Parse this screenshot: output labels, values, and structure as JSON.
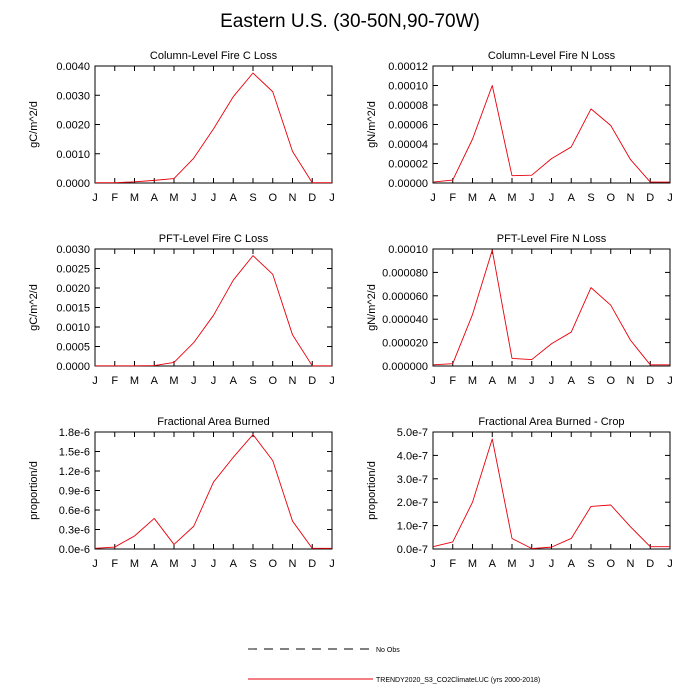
{
  "title": "Eastern U.S. (30-50N,90-70W)",
  "colors": {
    "series": "#e8000b",
    "axis": "#000000",
    "obs": "#000000"
  },
  "legend": {
    "obs_label": "No Obs",
    "model_label": "TRENDY2020_S3_CO2ClimateLUC (yrs 2000-2018)"
  },
  "chart_data": [
    {
      "type": "line",
      "title": "Column-Level Fire C Loss",
      "ylabel": "gC/m^2/d",
      "categories": [
        "J",
        "F",
        "M",
        "A",
        "M",
        "J",
        "J",
        "A",
        "S",
        "O",
        "N",
        "D",
        "J"
      ],
      "ylim": [
        0,
        0.004
      ],
      "yticks": [
        0,
        0.001,
        0.002,
        0.003,
        0.004
      ],
      "ytick_labels": [
        "0.0000",
        "0.0010",
        "0.0020",
        "0.0030",
        "0.0040"
      ],
      "series": [
        {
          "name": "TRENDY2020_S3_CO2ClimateLUC (yrs 2000-2018)",
          "values": [
            1e-05,
            1e-05,
            4e-05,
            9e-05,
            0.00015,
            0.00085,
            0.00185,
            0.00295,
            0.00376,
            0.00312,
            0.00108,
            1e-05,
            1e-05
          ]
        }
      ]
    },
    {
      "type": "line",
      "title": "Column-Level Fire N Loss",
      "ylabel": "gN/m^2/d",
      "categories": [
        "J",
        "F",
        "M",
        "A",
        "M",
        "J",
        "J",
        "A",
        "S",
        "O",
        "N",
        "D",
        "J"
      ],
      "ylim": [
        0,
        0.00012
      ],
      "yticks": [
        0,
        2e-05,
        4e-05,
        6e-05,
        8e-05,
        0.0001,
        0.00012
      ],
      "ytick_labels": [
        "0.00000",
        "0.00002",
        "0.00004",
        "0.00006",
        "0.00008",
        "0.00010",
        "0.00012"
      ],
      "series": [
        {
          "name": "TRENDY2020_S3_CO2ClimateLUC (yrs 2000-2018)",
          "values": [
            1e-06,
            3e-06,
            4.5e-05,
            0.0001,
            7.5e-06,
            8e-06,
            2.5e-05,
            3.7e-05,
            7.6e-05,
            5.9e-05,
            2.4e-05,
            1e-06,
            1e-06
          ]
        }
      ]
    },
    {
      "type": "line",
      "title": "PFT-Level Fire C Loss",
      "ylabel": "gC/m^2/d",
      "categories": [
        "J",
        "F",
        "M",
        "A",
        "M",
        "J",
        "J",
        "A",
        "S",
        "O",
        "N",
        "D",
        "J"
      ],
      "ylim": [
        0,
        0.003
      ],
      "yticks": [
        0,
        0.0005,
        0.001,
        0.0015,
        0.002,
        0.0025,
        0.003
      ],
      "ytick_labels": [
        "0.0000",
        "0.0005",
        "0.0010",
        "0.0015",
        "0.0020",
        "0.0025",
        "0.0030"
      ],
      "series": [
        {
          "name": "TRENDY2020_S3_CO2ClimateLUC (yrs 2000-2018)",
          "values": [
            5e-06,
            5e-06,
            5e-06,
            1e-05,
            9e-05,
            0.0006,
            0.0013,
            0.0022,
            0.00283,
            0.00235,
            0.0008,
            5e-06,
            5e-06
          ]
        }
      ]
    },
    {
      "type": "line",
      "title": "PFT-Level Fire N Loss",
      "ylabel": "gN/m^2/d",
      "categories": [
        "J",
        "F",
        "M",
        "A",
        "M",
        "J",
        "J",
        "A",
        "S",
        "O",
        "N",
        "D",
        "J"
      ],
      "ylim": [
        0,
        0.0001
      ],
      "yticks": [
        0,
        2e-05,
        4e-05,
        6e-05,
        8e-05,
        0.0001
      ],
      "ytick_labels": [
        "0.000000",
        "0.000020",
        "0.000040",
        "0.000060",
        "0.000080",
        "0.00010"
      ],
      "series": [
        {
          "name": "TRENDY2020_S3_CO2ClimateLUC (yrs 2000-2018)",
          "values": [
            1e-06,
            2e-06,
            4.4e-05,
            9.9e-05,
            6.5e-06,
            5.5e-06,
            1.9e-05,
            2.9e-05,
            6.7e-05,
            5.2e-05,
            2.2e-05,
            1e-06,
            1e-06
          ]
        }
      ]
    },
    {
      "type": "line",
      "title": "Fractional Area Burned",
      "ylabel": "proportion/d",
      "categories": [
        "J",
        "F",
        "M",
        "A",
        "M",
        "J",
        "J",
        "A",
        "S",
        "O",
        "N",
        "D",
        "J"
      ],
      "ylim": [
        0,
        1.8e-06
      ],
      "yticks": [
        0,
        3e-07,
        6e-07,
        9e-07,
        1.2e-06,
        1.5e-06,
        1.8e-06
      ],
      "ytick_labels": [
        "0.0e-6",
        "0.3e-6",
        "0.6e-6",
        "0.9e-6",
        "1.2e-6",
        "1.5e-6",
        "1.8e-6"
      ],
      "series": [
        {
          "name": "TRENDY2020_S3_CO2ClimateLUC (yrs 2000-2018)",
          "values": [
            1e-08,
            3e-08,
            2e-07,
            4.7e-07,
            7e-08,
            3.5e-07,
            1.03e-06,
            1.41e-06,
            1.76e-06,
            1.36e-06,
            4.3e-07,
            1e-08,
            1e-08
          ]
        }
      ]
    },
    {
      "type": "line",
      "title": "Fractional Area Burned - Crop",
      "ylabel": "proportion/d",
      "categories": [
        "J",
        "F",
        "M",
        "A",
        "M",
        "J",
        "J",
        "A",
        "S",
        "O",
        "N",
        "D",
        "J"
      ],
      "ylim": [
        0,
        5e-07
      ],
      "yticks": [
        0,
        1e-07,
        2e-07,
        3e-07,
        4e-07,
        5e-07
      ],
      "ytick_labels": [
        "0.0e-7",
        "1.0e-7",
        "2.0e-7",
        "3.0e-7",
        "4.0e-7",
        "5.0e-7"
      ],
      "series": [
        {
          "name": "TRENDY2020_S3_CO2ClimateLUC (yrs 2000-2018)",
          "values": [
            1e-08,
            3e-08,
            2e-07,
            4.7e-07,
            4.5e-08,
            2e-09,
            8e-09,
            4.5e-08,
            1.82e-07,
            1.88e-07,
            9.5e-08,
            1e-08,
            1e-08
          ]
        }
      ]
    }
  ]
}
